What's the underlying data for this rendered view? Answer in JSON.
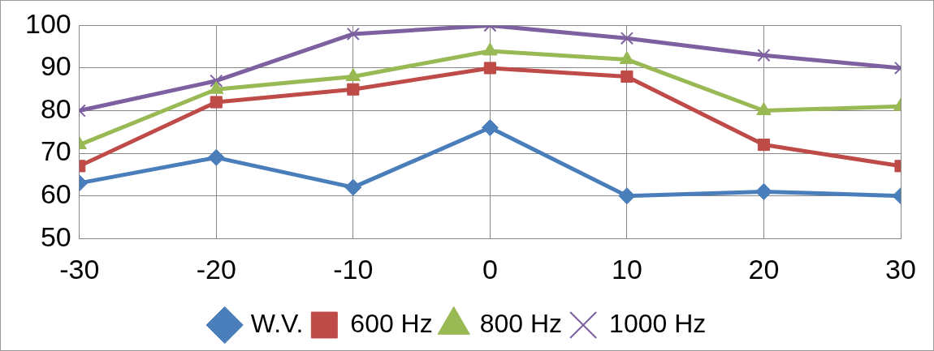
{
  "chart_data": {
    "type": "line",
    "xlim": [
      -30,
      30
    ],
    "xticks": [
      -30,
      -20,
      -10,
      0,
      10,
      20,
      30
    ],
    "ylim": [
      50,
      100
    ],
    "yticks": [
      50,
      60,
      70,
      80,
      90,
      100
    ],
    "grid": true,
    "legend": "bottom",
    "line_style": "solid",
    "x": [
      -30,
      -20,
      -10,
      0,
      10,
      20,
      30
    ],
    "series": [
      {
        "name": "W.V.",
        "color": "#4a7ebb",
        "marker": "diamond",
        "values": [
          63,
          69,
          62,
          76,
          60,
          61,
          60
        ]
      },
      {
        "name": "600 Hz",
        "color": "#be4b48",
        "marker": "square",
        "values": [
          67,
          82,
          85,
          90,
          88,
          72,
          67
        ]
      },
      {
        "name": "800 Hz",
        "color": "#98b954",
        "marker": "triangle",
        "values": [
          72,
          85,
          88,
          94,
          92,
          80,
          81
        ]
      },
      {
        "name": "1000 Hz",
        "color": "#7d60a0",
        "marker": "cross",
        "values": [
          80,
          87,
          98,
          100,
          97,
          93,
          90
        ]
      }
    ]
  }
}
